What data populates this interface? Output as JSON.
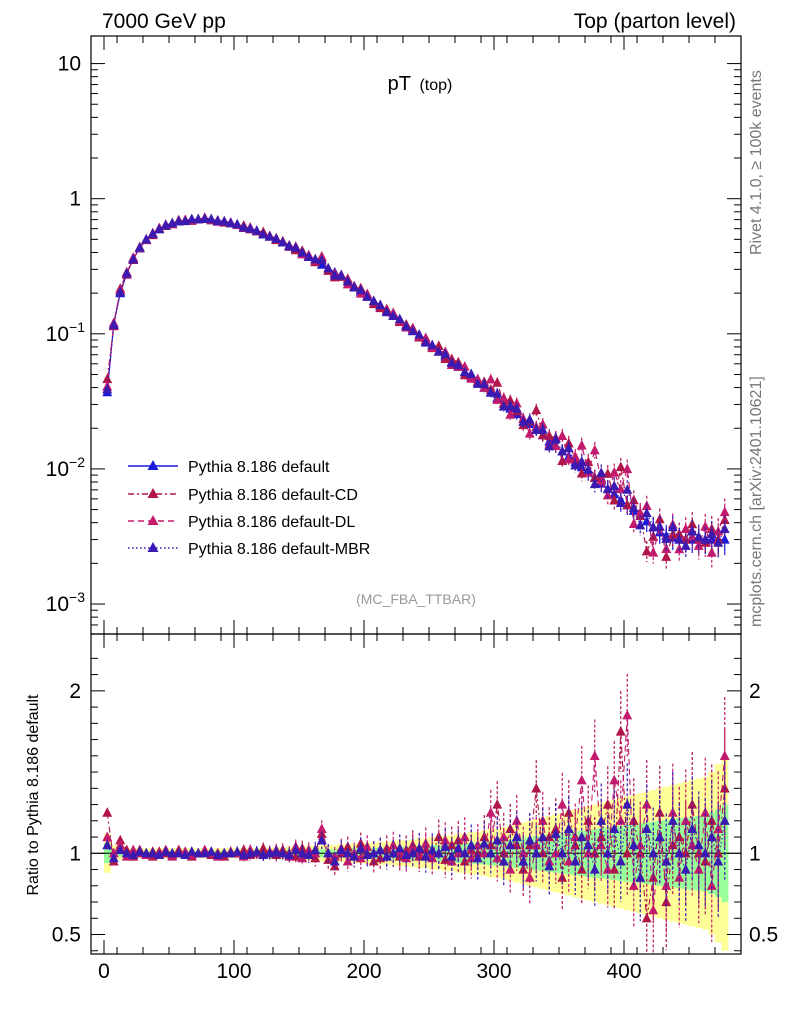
{
  "header": {
    "left": "7000 GeV pp",
    "right": "Top (parton level)"
  },
  "side_text": {
    "top": "Rivet 4.1.0, ≥ 100k events",
    "bottom": "mcplots.cern.ch [arXiv:2401.10621]"
  },
  "analysis_label": "(MC_FBA_TTBAR)",
  "plot_title": {
    "main": "pT",
    "sub": "(top)"
  },
  "main_axis": {
    "scale": "log",
    "ylim": [
      0.0006,
      16
    ],
    "ticks": [
      {
        "v": 10,
        "base": "10",
        "exp": ""
      },
      {
        "v": 1,
        "base": "1",
        "exp": ""
      },
      {
        "v": 0.1,
        "base": "10",
        "exp": "−1"
      },
      {
        "v": 0.01,
        "base": "10",
        "exp": "−2"
      },
      {
        "v": 0.001,
        "base": "10",
        "exp": "−3"
      }
    ]
  },
  "ratio_axis": {
    "ylabel": "Ratio to Pythia 8.186 default",
    "ylim": [
      0.38,
      2.35
    ],
    "ticks": [
      {
        "v": 2,
        "label": "2"
      },
      {
        "v": 1,
        "label": "1"
      },
      {
        "v": 0.5,
        "label": "0.5"
      }
    ]
  },
  "x_axis": {
    "xlim": [
      -10,
      490
    ],
    "ticks": [
      {
        "v": 0,
        "label": "0"
      },
      {
        "v": 100,
        "label": "100"
      },
      {
        "v": 200,
        "label": "200"
      },
      {
        "v": 300,
        "label": "300"
      },
      {
        "v": 400,
        "label": "400"
      }
    ]
  },
  "colors": {
    "default": "#1a1adc",
    "cd": "#b01648",
    "dl": "#c21a6c",
    "mbr": "#3a1ab0",
    "band_yellow": "#ffff99",
    "band_green": "#99ff99"
  },
  "chart_data": {
    "type": "line",
    "title": "pT (top)",
    "xlabel": "",
    "ylabel": "",
    "x_start": 2.5,
    "x_step": 5,
    "series": [
      {
        "name": "Pythia 8.186 default",
        "style": "solid",
        "values": [
          0.037,
          0.12,
          0.2,
          0.28,
          0.36,
          0.43,
          0.5,
          0.55,
          0.6,
          0.63,
          0.66,
          0.68,
          0.69,
          0.7,
          0.705,
          0.71,
          0.7,
          0.69,
          0.68,
          0.66,
          0.64,
          0.62,
          0.6,
          0.575,
          0.55,
          0.525,
          0.5,
          0.475,
          0.45,
          0.425,
          0.4,
          0.375,
          0.35,
          0.325,
          0.305,
          0.285,
          0.265,
          0.245,
          0.225,
          0.205,
          0.19,
          0.175,
          0.16,
          0.148,
          0.136,
          0.125,
          0.115,
          0.105,
          0.096,
          0.088,
          0.081,
          0.074,
          0.068,
          0.062,
          0.057,
          0.052,
          0.048,
          0.044,
          0.04,
          0.0368,
          0.0335,
          0.0305,
          0.028,
          0.0255,
          0.0235,
          0.0215,
          0.0195,
          0.0178,
          0.016,
          0.0148,
          0.0135,
          0.0124,
          0.0112,
          0.0103,
          0.0094,
          0.0086,
          0.0078,
          0.0071,
          0.0065,
          0.0059,
          0.0054,
          0.0049,
          0.0045,
          0.0041,
          0.0037,
          0.0034,
          0.0032,
          0.0031,
          0.003,
          0.003,
          0.003,
          0.003,
          0.003,
          0.003,
          0.003,
          0.003
        ]
      },
      {
        "name": "Pythia 8.186 default-CD",
        "style": "dashdot",
        "ratio": [
          1.25,
          0.95,
          1.08,
          1.02,
          0.98,
          1.02,
          1.0,
          0.98,
          1.01,
          1.0,
          0.99,
          1.02,
          1.0,
          0.98,
          1.0,
          1.01,
          0.99,
          1.0,
          0.98,
          1.0,
          1.0,
          1.02,
          0.99,
          1.0,
          1.03,
          1.0,
          0.99,
          1.02,
          1.0,
          0.98,
          1.03,
          1.0,
          0.97,
          1.12,
          0.96,
          0.92,
          1.0,
          1.04,
          0.98,
          1.06,
          1.0,
          0.95,
          0.97,
          1.03,
          1.0,
          0.98,
          1.02,
          1.05,
          0.98,
          1.02,
          1.0,
          1.1,
          0.96,
          1.05,
          1.08,
          0.95,
          1.02,
          1.0,
          1.1,
          1.05,
          1.3,
          1.0,
          1.15,
          1.05,
          0.9,
          1.05,
          1.4,
          1.0,
          1.1,
          1.15,
          0.85,
          1.25,
          1.05,
          0.9,
          1.2,
          1.0,
          1.1,
          1.3,
          0.9,
          1.75,
          1.0,
          1.2,
          1.0,
          0.6,
          0.85,
          1.25,
          0.7,
          1.05,
          1.1,
          1.0,
          1.3,
          1.0,
          0.95,
          1.2,
          1.0,
          1.4
        ]
      },
      {
        "name": "Pythia 8.186 default-DL",
        "style": "dashed",
        "ratio": [
          1.1,
          1.0,
          1.05,
          0.98,
          1.02,
          1.0,
          0.99,
          1.01,
          1.0,
          1.02,
          0.98,
          1.0,
          1.01,
          0.99,
          1.0,
          1.02,
          1.0,
          0.98,
          1.0,
          1.01,
          1.0,
          0.98,
          1.02,
          1.0,
          0.99,
          1.01,
          1.02,
          1.0,
          0.98,
          1.04,
          0.97,
          1.02,
          1.0,
          1.15,
          1.0,
          0.98,
          1.03,
          0.95,
          1.0,
          0.97,
          1.04,
          1.0,
          1.02,
          0.98,
          1.05,
          1.0,
          0.97,
          1.03,
          1.0,
          1.06,
          0.97,
          1.0,
          1.08,
          0.95,
          1.0,
          1.1,
          0.97,
          1.05,
          1.0,
          1.25,
          0.97,
          1.1,
          0.9,
          1.2,
          1.0,
          0.85,
          1.05,
          1.2,
          0.95,
          1.0,
          1.3,
          0.95,
          1.1,
          1.45,
          1.0,
          1.6,
          1.05,
          0.9,
          1.45,
          1.2,
          1.85,
          0.8,
          1.05,
          1.3,
          0.65,
          1.1,
          0.8,
          1.25,
          0.85,
          1.2,
          1.05,
          0.9,
          1.25,
          0.8,
          1.15,
          1.6
        ]
      },
      {
        "name": "Pythia 8.186 default-MBR",
        "style": "dotted",
        "ratio": [
          1.05,
          0.97,
          1.02,
          1.0,
          0.99,
          1.01,
          1.0,
          1.0,
          0.99,
          1.01,
          1.0,
          1.0,
          0.99,
          1.01,
          1.0,
          1.0,
          1.01,
          0.99,
          1.0,
          1.0,
          1.01,
          0.99,
          1.0,
          1.01,
          0.99,
          1.0,
          1.01,
          1.0,
          0.99,
          1.02,
          1.0,
          0.99,
          1.02,
          1.08,
          1.0,
          0.95,
          1.02,
          1.0,
          0.98,
          1.03,
          0.99,
          1.0,
          1.02,
          0.98,
          1.0,
          1.03,
          0.99,
          1.0,
          1.03,
          0.98,
          1.02,
          1.0,
          1.04,
          0.98,
          1.03,
          1.0,
          1.05,
          0.97,
          1.06,
          1.0,
          1.08,
          0.95,
          1.05,
          1.1,
          0.95,
          1.08,
          1.0,
          1.1,
          0.92,
          1.12,
          1.0,
          1.15,
          0.95,
          1.1,
          1.05,
          0.9,
          1.2,
          1.0,
          1.15,
          0.95,
          1.3,
          1.05,
          0.85,
          1.15,
          1.0,
          1.1,
          0.95,
          1.2,
          1.0,
          0.9,
          1.15,
          1.05,
          1.0,
          1.1,
          0.95,
          1.2
        ]
      }
    ],
    "uncertainty_band": {
      "yellow_halfwidth": [
        0.12,
        0.05,
        0.04,
        0.03,
        0.03,
        0.03,
        0.03,
        0.03,
        0.03,
        0.03,
        0.03,
        0.03,
        0.03,
        0.03,
        0.03,
        0.03,
        0.03,
        0.03,
        0.03,
        0.03,
        0.03,
        0.03,
        0.03,
        0.03,
        0.035,
        0.035,
        0.035,
        0.035,
        0.04,
        0.04,
        0.04,
        0.045,
        0.045,
        0.05,
        0.05,
        0.05,
        0.055,
        0.055,
        0.06,
        0.06,
        0.065,
        0.065,
        0.07,
        0.07,
        0.075,
        0.08,
        0.08,
        0.085,
        0.09,
        0.09,
        0.1,
        0.1,
        0.11,
        0.11,
        0.12,
        0.12,
        0.13,
        0.13,
        0.14,
        0.15,
        0.15,
        0.16,
        0.17,
        0.18,
        0.19,
        0.2,
        0.21,
        0.22,
        0.23,
        0.24,
        0.25,
        0.26,
        0.27,
        0.28,
        0.29,
        0.3,
        0.31,
        0.32,
        0.33,
        0.34,
        0.35,
        0.36,
        0.37,
        0.38,
        0.39,
        0.4,
        0.41,
        0.42,
        0.43,
        0.44,
        0.45,
        0.46,
        0.47,
        0.5,
        0.55,
        0.6
      ],
      "green_halfwidth": [
        0.06,
        0.025,
        0.02,
        0.015,
        0.015,
        0.015,
        0.015,
        0.015,
        0.015,
        0.015,
        0.015,
        0.015,
        0.015,
        0.015,
        0.015,
        0.015,
        0.015,
        0.015,
        0.015,
        0.015,
        0.015,
        0.015,
        0.015,
        0.015,
        0.018,
        0.018,
        0.018,
        0.018,
        0.02,
        0.02,
        0.02,
        0.022,
        0.022,
        0.025,
        0.025,
        0.025,
        0.028,
        0.028,
        0.03,
        0.03,
        0.033,
        0.033,
        0.035,
        0.035,
        0.038,
        0.04,
        0.04,
        0.043,
        0.045,
        0.045,
        0.05,
        0.05,
        0.055,
        0.055,
        0.06,
        0.06,
        0.065,
        0.065,
        0.07,
        0.075,
        0.075,
        0.08,
        0.085,
        0.09,
        0.095,
        0.1,
        0.105,
        0.11,
        0.115,
        0.12,
        0.125,
        0.13,
        0.135,
        0.14,
        0.145,
        0.15,
        0.155,
        0.16,
        0.165,
        0.17,
        0.175,
        0.18,
        0.185,
        0.19,
        0.195,
        0.2,
        0.205,
        0.21,
        0.215,
        0.22,
        0.225,
        0.23,
        0.235,
        0.25,
        0.27,
        0.3
      ]
    }
  }
}
